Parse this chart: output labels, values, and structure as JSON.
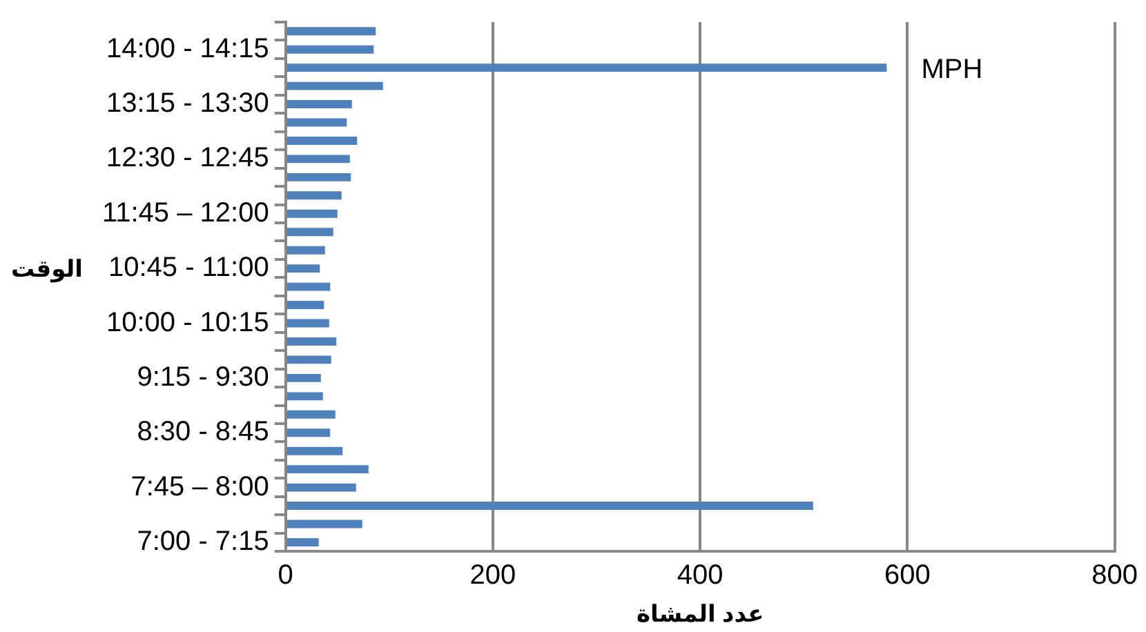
{
  "chart_data": {
    "type": "bar",
    "orientation": "horizontal",
    "xlabel": "عدد المشاة",
    "ylabel": "الوقت",
    "categories": [
      null,
      "14:00 - 14:15",
      null,
      null,
      "13:15 - 13:30",
      null,
      null,
      "12:30 - 12:45",
      null,
      null,
      "11:45 – 12:00",
      null,
      null,
      "10:45 - 11:00",
      null,
      null,
      "10:00 - 10:15",
      null,
      null,
      "9:15 - 9:30",
      null,
      null,
      "8:30 - 8:45",
      null,
      null,
      "7:45 – 8:00",
      null,
      null,
      "7:00 - 7:15"
    ],
    "values": [
      87,
      85,
      580,
      94,
      64,
      59,
      69,
      62,
      63,
      54,
      50,
      46,
      38,
      33,
      43,
      37,
      42,
      49,
      44,
      34,
      36,
      48,
      43,
      55,
      80,
      68,
      509,
      74,
      32
    ],
    "color": "#4f81bd",
    "xlim": [
      0,
      800
    ],
    "xticks": [
      0,
      200,
      400,
      600,
      800
    ],
    "grid": "x",
    "legend": false,
    "annotations": [
      "MPH"
    ]
  }
}
